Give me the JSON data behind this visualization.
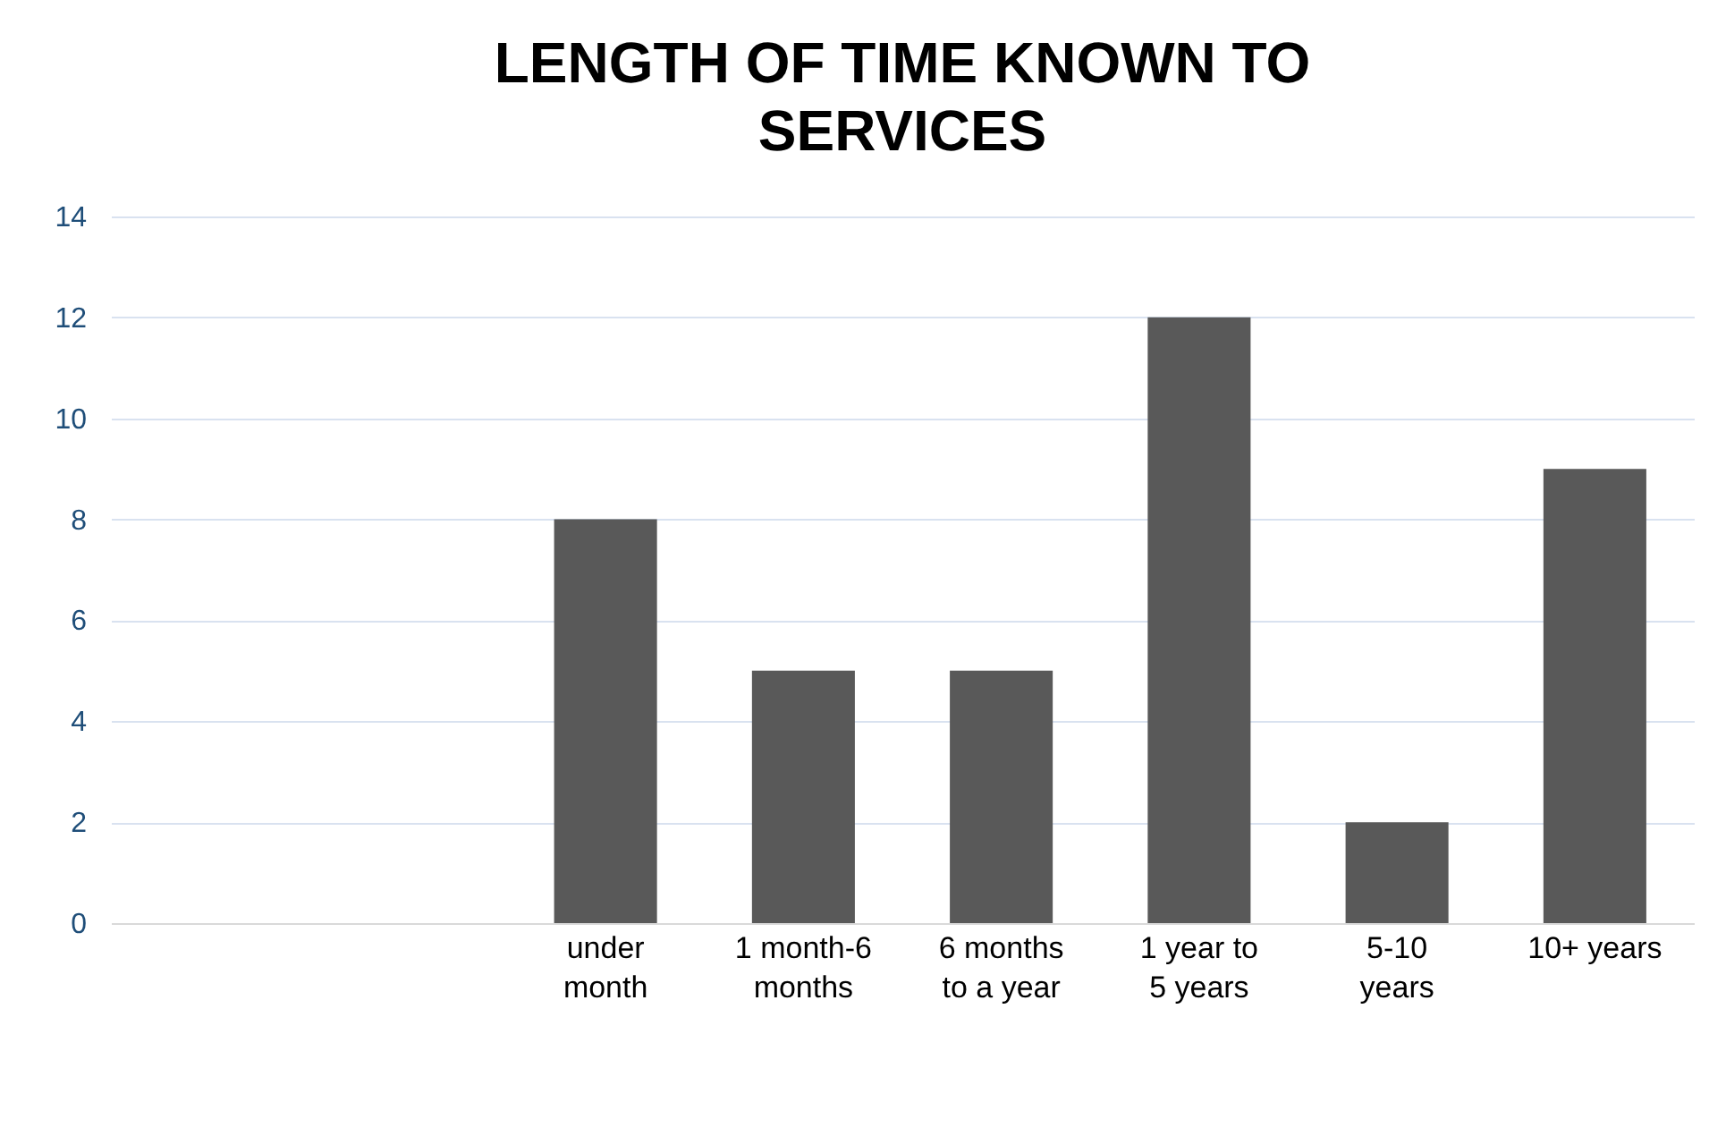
{
  "chart_data": {
    "type": "bar",
    "title": "LENGTH OF TIME KNOWN TO SERVICES",
    "categories": [
      null,
      null,
      "under month",
      "1 month-6 months",
      "6 months to a year",
      "1 year to 5 years",
      "5-10 years",
      "10+ years"
    ],
    "values": [
      null,
      null,
      8,
      5,
      5,
      12,
      2,
      9
    ],
    "color": "#595959",
    "ylim": [
      0,
      14
    ],
    "yticks": [
      0,
      2,
      4,
      6,
      8,
      10,
      12,
      14
    ],
    "grid": "y"
  }
}
